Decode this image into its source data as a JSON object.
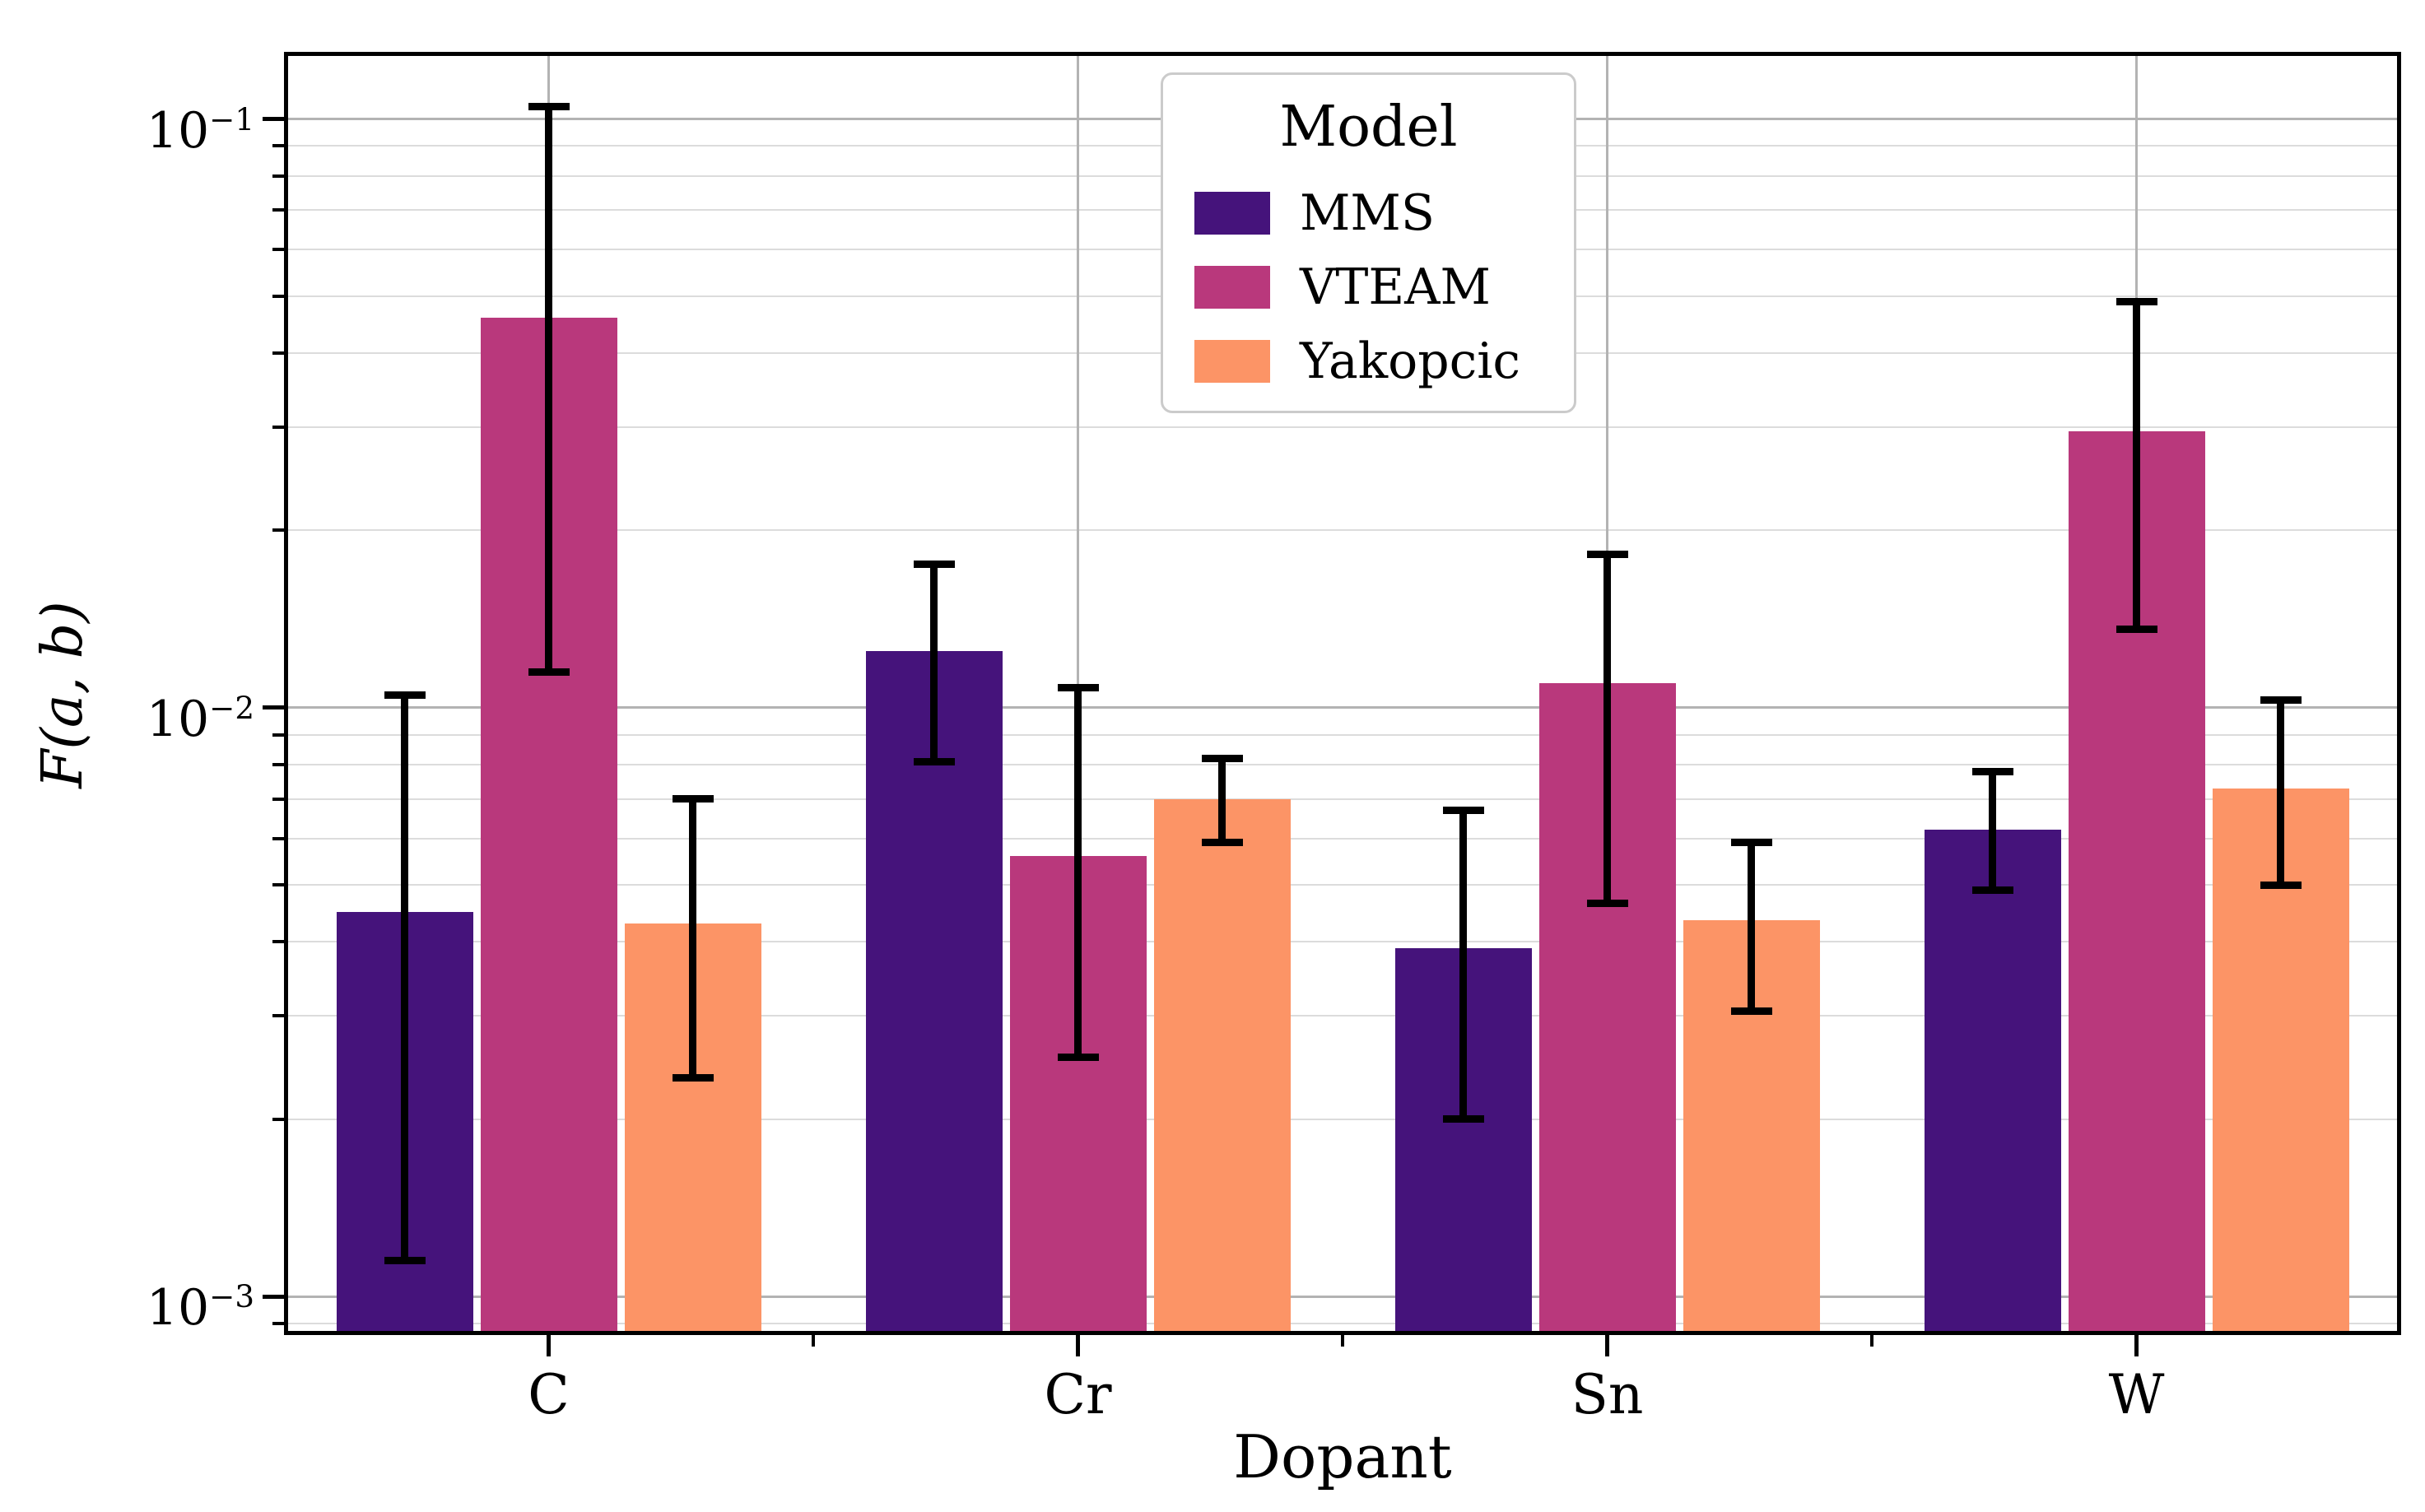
{
  "style": {
    "background": "#ffffff",
    "spine_color": "#000000",
    "grid_major_color": "#b3b3b3",
    "grid_minor_color": "#dcdcdc",
    "errorbar_color": "#000000"
  },
  "chart_data": {
    "type": "bar",
    "title": "",
    "xlabel": "Dopant",
    "ylabel": "F(a, b)",
    "yscale": "log",
    "ylim": [
      0.00086,
      0.13
    ],
    "grid": true,
    "legend_title": "Model",
    "legend_position": "upper center",
    "categories": [
      "C",
      "Cr",
      "Sn",
      "W"
    ],
    "y_ticks": [
      {
        "base": "10",
        "exp": "−1",
        "value": 0.1
      },
      {
        "base": "10",
        "exp": "−2",
        "value": 0.01
      },
      {
        "base": "10",
        "exp": "−3",
        "value": 0.001
      }
    ],
    "series": [
      {
        "name": "MMS",
        "color": "#45137b",
        "values": [
          0.0045,
          0.0125,
          0.0039,
          0.0062
        ],
        "err_low": [
          0.00115,
          0.0081,
          0.002,
          0.0049
        ],
        "err_high": [
          0.0105,
          0.0175,
          0.0067,
          0.0078
        ]
      },
      {
        "name": "VTEAM",
        "color": "#b9387c",
        "values": [
          0.046,
          0.0056,
          0.011,
          0.0295
        ],
        "err_low": [
          0.0115,
          0.00255,
          0.00465,
          0.0136
        ],
        "err_high": [
          0.105,
          0.0108,
          0.0182,
          0.049
        ]
      },
      {
        "name": "Yakopcic",
        "color": "#fc9466",
        "values": [
          0.0043,
          0.007,
          0.00435,
          0.0073
        ],
        "err_low": [
          0.00235,
          0.0059,
          0.00305,
          0.005
        ],
        "err_high": [
          0.007,
          0.0082,
          0.0059,
          0.0103
        ]
      }
    ]
  }
}
